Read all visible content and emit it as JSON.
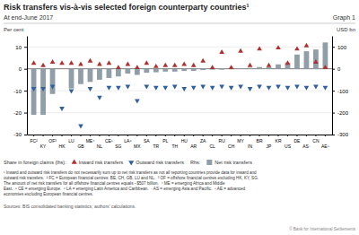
{
  "chart_data": {
    "type": "bar",
    "title": "Risk transfers vis-à-vis selected foreign counterparty countries¹",
    "subtitle": "At end-June 2017",
    "ylabel": "Per cent",
    "y2label": "USD bn",
    "categories": [
      "FC²",
      "KY",
      "OF³",
      "HK",
      "LU",
      "GB",
      "ME⁴",
      "NL",
      "CE⁵",
      "SG",
      "LA⁶",
      "MX",
      "SA",
      "TR",
      "PL",
      "TH",
      "HU",
      "AR",
      "ZA",
      "CL",
      "RU",
      "CH",
      "MY",
      "IN",
      "BR",
      "JP",
      "KR",
      "US",
      "DE",
      "AS⁷",
      "CN",
      "AE⁸"
    ],
    "series": [
      {
        "name": "Net risk transfers",
        "type": "bar",
        "axis": "y2",
        "color": "#909ea8",
        "values": [
          -210,
          -210,
          -115,
          0,
          -90,
          -70,
          -60,
          -50,
          -42,
          -35,
          -22,
          -28,
          -18,
          -16,
          -13,
          -13,
          -10,
          -10,
          -6,
          -4,
          -4,
          -2,
          3,
          4,
          8,
          7,
          20,
          28,
          65,
          80,
          88,
          120
        ]
      },
      {
        "name": "Inward risk transfers",
        "type": "scatter",
        "marker": "triangle-up",
        "color": "#b03030",
        "values": [
          2.5,
          1.5,
          3.0,
          2.5,
          2.5,
          2.0,
          3.5,
          2.0,
          2.5,
          0.5,
          2.0,
          0.5,
          2.5,
          1.0,
          1.5,
          1.5,
          2.0,
          1.5,
          3.5,
          0.5,
          7.5,
          0.5,
          8.0,
          1.5,
          9.0,
          1.5,
          9.5,
          2.5,
          9.0,
          10.5,
          3.0,
          0.5
        ]
      },
      {
        "name": "Outward risk transfers",
        "type": "scatter",
        "marker": "triangle-down",
        "color": "#3060a0",
        "values": [
          -9.0,
          -9.0,
          -8.0,
          -18.0,
          -10.0,
          -26.0,
          -9.0,
          -13.0,
          -8.5,
          -8.5,
          -8.0,
          -14.5,
          -8.0,
          -8.5,
          -8.5,
          -8.0,
          -9.0,
          -8.5,
          -8.0,
          -8.5,
          -8.0,
          -8.5,
          -8.0,
          -9.0,
          -8.0,
          -8.5,
          -8.0,
          -8.5,
          -8.0,
          -8.5,
          -8.0,
          -8.5
        ]
      }
    ],
    "ylim": [
      -30,
      15
    ],
    "yticks": [
      -30,
      -20,
      -10,
      0,
      10
    ],
    "y2lim": [
      -300,
      150
    ],
    "y2ticks": [
      -300,
      -200,
      -100,
      0,
      100
    ],
    "grid": true,
    "legend": "bottom",
    "annotations": [
      "Graph 1",
      "Share in foreign claims (lhs):",
      "Rhs:",
      "¹ Inward and outward risk transfers do not necessarily sum up to net risk transfers as not all reporting countries provide data for inward and",
      "outward risk transfers.  ² FC = European financial centres: BE, CH, GB, LU and NL.  ³ OF = offshore financial centres excluding HK, KY, SG.",
      "The amount of net risk transfers for all offshore financial centres equals −$507 billion.  ⁴ ME = emerging Africa and Middle",
      "East.  ⁵ CE = emerging Europe.  ⁶ LA = emerging Latin America and Caribbean.  ⁷ AS = emerging Asia and Pacific.  ⁸ AE = advanced",
      "economies excluding European financial centres.",
      "Sources: BIS consolidated banking statistics; authors' calculations.",
      "© Bank for International Settlements"
    ]
  }
}
